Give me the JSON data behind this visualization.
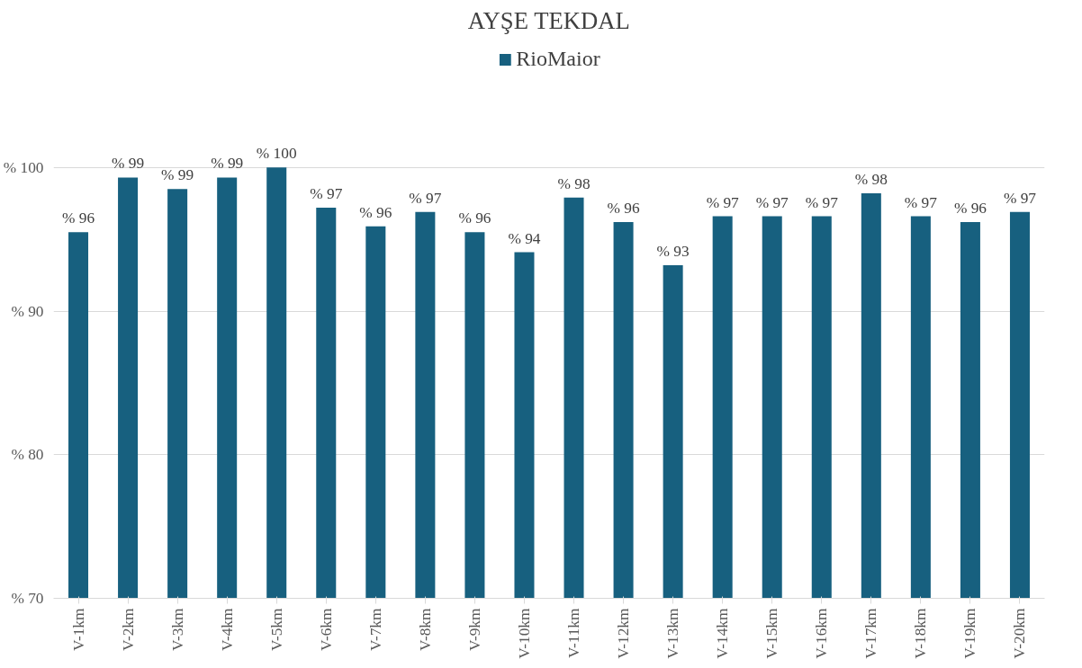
{
  "chart_data": {
    "type": "bar",
    "title": "AYŞE TEKDAL",
    "categories": [
      "V-1km",
      "V-2km",
      "V-3km",
      "V-4km",
      "V-5km",
      "V-6km",
      "V-7km",
      "V-8km",
      "V-9km",
      "V-10km",
      "V-11km",
      "V-12km",
      "V-13km",
      "V-14km",
      "V-15km",
      "V-16km",
      "V-17km",
      "V-18km",
      "V-19km",
      "V-20km"
    ],
    "series": [
      {
        "name": "RioMaior",
        "color": "#17607f",
        "values": [
          95.5,
          99.3,
          98.5,
          99.3,
          100,
          97.2,
          95.9,
          96.9,
          95.5,
          94.1,
          97.9,
          96.2,
          93.2,
          96.6,
          96.6,
          96.6,
          98.2,
          96.6,
          96.2,
          96.9
        ],
        "value_labels": [
          "% 96",
          "% 99",
          "% 99",
          "% 99",
          "% 100",
          "% 97",
          "% 96",
          "% 97",
          "% 96",
          "% 94",
          "% 98",
          "% 96",
          "% 93",
          "% 97",
          "% 97",
          "% 97",
          "% 98",
          "% 97",
          "% 96",
          "% 97"
        ]
      }
    ],
    "ylim": [
      70,
      100
    ],
    "yticks": [
      {
        "value": 70,
        "label": "% 70"
      },
      {
        "value": 80,
        "label": "% 80"
      },
      {
        "value": 90,
        "label": "% 90"
      },
      {
        "value": 100,
        "label": "% 100"
      }
    ],
    "grid": "y",
    "legend": "top"
  }
}
